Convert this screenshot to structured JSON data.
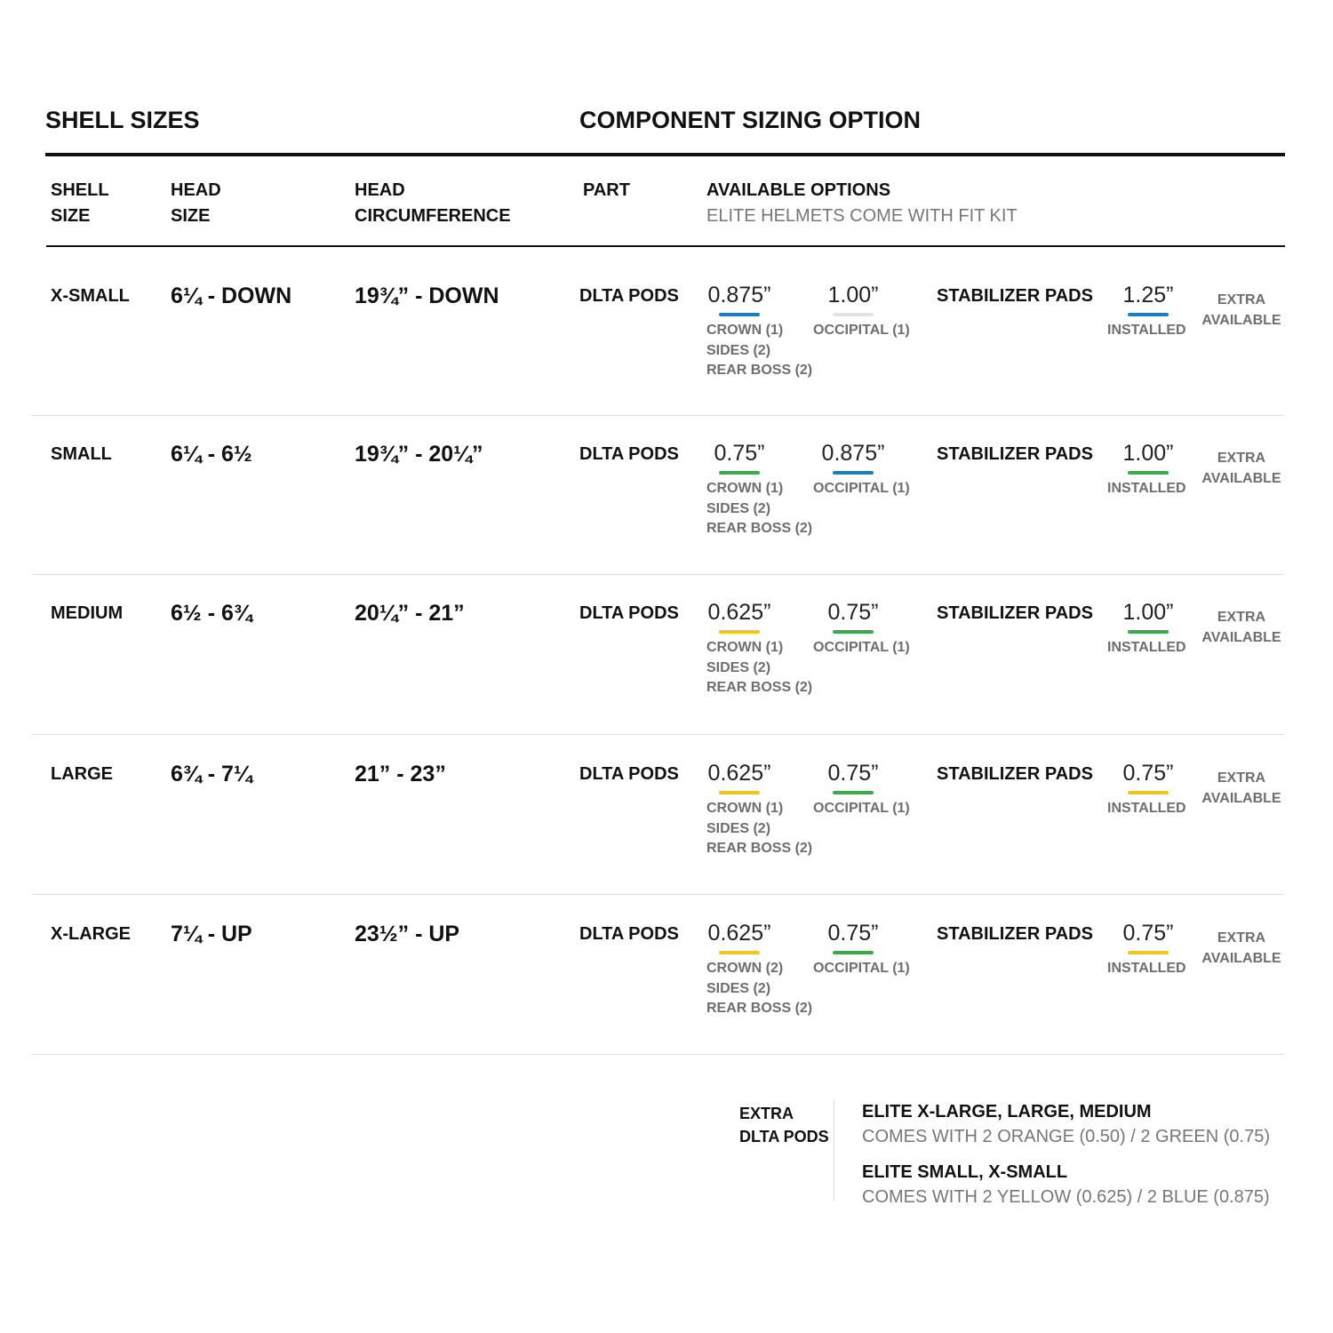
{
  "headings": {
    "shell_sizes": "SHELL SIZES",
    "component_sizing": "COMPONENT SIZING OPTION"
  },
  "columns": {
    "shell_size": [
      "SHELL",
      "SIZE"
    ],
    "head_size": [
      "HEAD",
      "SIZE"
    ],
    "head_circumference": [
      "HEAD",
      "CIRCUMFERENCE"
    ],
    "part": "PART",
    "available_options": "AVAILABLE OPTIONS",
    "available_options_note": "ELITE HELMETS COME WITH FIT KIT"
  },
  "colors": {
    "blue": "#1a7fc1",
    "green": "#3aaa4a",
    "yellow": "#f2c51a",
    "light_gray": "#e3e3e3"
  },
  "rows": [
    {
      "shell": "X-SMALL",
      "head": "6¼ - DOWN",
      "circ": "19¾” - DOWN",
      "part": "DLTA PODS",
      "opt1": {
        "value": "0.875”",
        "color": "#1a7fc1",
        "lines": [
          "CROWN (1)",
          "SIDES (2)",
          "REAR BOSS (2)"
        ]
      },
      "opt2": {
        "value": "1.00”",
        "color": "#e3e3e3",
        "lines": [
          "OCCIPITAL (1)"
        ]
      },
      "stab_label": "STABILIZER PADS",
      "stab": {
        "value": "1.25”",
        "color": "#1a7fc1",
        "note": "INSTALLED"
      },
      "extra": [
        "EXTRA",
        "AVAILABLE"
      ]
    },
    {
      "shell": "SMALL",
      "head": "6¼ - 6½",
      "circ": "19¾” - 20¼”",
      "part": "DLTA PODS",
      "opt1": {
        "value": "0.75”",
        "color": "#3aaa4a",
        "lines": [
          "CROWN (1)",
          "SIDES (2)",
          "REAR BOSS (2)"
        ]
      },
      "opt2": {
        "value": "0.875”",
        "color": "#1a7fc1",
        "lines": [
          "OCCIPITAL (1)"
        ]
      },
      "stab_label": "STABILIZER PADS",
      "stab": {
        "value": "1.00”",
        "color": "#3aaa4a",
        "note": "INSTALLED"
      },
      "extra": [
        "EXTRA",
        "AVAILABLE"
      ]
    },
    {
      "shell": "MEDIUM",
      "head": "6½ - 6¾",
      "circ": "20¼” -  21”",
      "part": "DLTA PODS",
      "opt1": {
        "value": "0.625”",
        "color": "#f2c51a",
        "lines": [
          "CROWN (1)",
          "SIDES (2)",
          "REAR BOSS (2)"
        ]
      },
      "opt2": {
        "value": "0.75”",
        "color": "#3aaa4a",
        "lines": [
          "OCCIPITAL (1)"
        ]
      },
      "stab_label": "STABILIZER PADS",
      "stab": {
        "value": "1.00”",
        "color": "#3aaa4a",
        "note": "INSTALLED"
      },
      "extra": [
        "EXTRA",
        "AVAILABLE"
      ]
    },
    {
      "shell": "LARGE",
      "head": "6¾ - 7¼",
      "circ": "21” - 23”",
      "part": "DLTA PODS",
      "opt1": {
        "value": "0.625”",
        "color": "#f2c51a",
        "lines": [
          "CROWN (1)",
          "SIDES (2)",
          "REAR BOSS (2)"
        ]
      },
      "opt2": {
        "value": "0.75”",
        "color": "#3aaa4a",
        "lines": [
          "OCCIPITAL (1)"
        ]
      },
      "stab_label": "STABILIZER PADS",
      "stab": {
        "value": "0.75”",
        "color": "#f2c51a",
        "note": "INSTALLED"
      },
      "extra": [
        "EXTRA",
        "AVAILABLE"
      ]
    },
    {
      "shell": "X-LARGE",
      "head": "7¼ - UP",
      "circ": "23½” - UP",
      "part": "DLTA PODS",
      "opt1": {
        "value": "0.625”",
        "color": "#f2c51a",
        "lines": [
          "CROWN (2)",
          "SIDES (2)",
          "REAR BOSS (2)"
        ]
      },
      "opt2": {
        "value": "0.75”",
        "color": "#3aaa4a",
        "lines": [
          "OCCIPITAL (1)"
        ]
      },
      "stab_label": "STABILIZER PADS",
      "stab": {
        "value": "0.75”",
        "color": "#f2c51a",
        "note": "INSTALLED"
      },
      "extra": [
        "EXTRA",
        "AVAILABLE"
      ]
    }
  ],
  "footer": {
    "label": [
      "EXTRA",
      "DLTA PODS"
    ],
    "groups": [
      {
        "title": "ELITE X-LARGE, LARGE, MEDIUM",
        "text": "COMES WITH 2 ORANGE (0.50) / 2 GREEN (0.75)"
      },
      {
        "title": "ELITE SMALL, X-SMALL",
        "text": "COMES WITH 2 YELLOW (0.625) / 2 BLUE (0.875)"
      }
    ]
  }
}
